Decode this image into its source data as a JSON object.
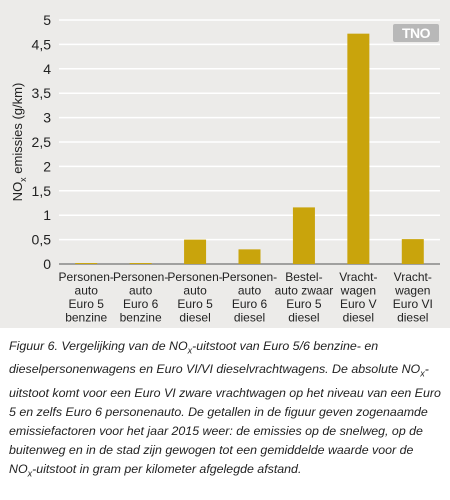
{
  "chart_data": {
    "type": "bar",
    "categories": [
      [
        "Personen-",
        "auto",
        "Euro 5",
        "benzine"
      ],
      [
        "Personen-",
        "auto",
        "Euro 6",
        "benzine"
      ],
      [
        "Personen-",
        "auto",
        "Euro 5",
        "diesel"
      ],
      [
        "Personen-",
        "auto",
        "Euro 6",
        "diesel"
      ],
      [
        "Bestel-",
        "auto zwaar",
        "Euro 5",
        "diesel"
      ],
      [
        "Vracht-",
        "wagen",
        "Euro V",
        "diesel"
      ],
      [
        "Vracht-",
        "wagen",
        "Euro VI",
        "diesel"
      ]
    ],
    "values": [
      0.02,
      0.02,
      0.5,
      0.3,
      1.16,
      4.72,
      0.51
    ],
    "ylabel_main": "NO",
    "ylabel_sub": "x",
    "ylabel_rest": " emissies (g/km)",
    "ylim": [
      0,
      5
    ],
    "yticks": [
      "0",
      "0,5",
      "1",
      "1,5",
      "2",
      "2,5",
      "3",
      "3,5",
      "4",
      "4,5",
      "5"
    ],
    "grid": true,
    "bar_color": "#c9a40c"
  },
  "logo_text": "TNO",
  "caption": {
    "label": "Figuur 6.",
    "parts": [
      "  Vergelijking van de NO",
      "x",
      "-uitstoot van Euro 5/6 benzine- en dieselpersonenwagens en Euro VI/VI dieselvrachtwagens. De absolute NO",
      "x",
      "-uitstoot komt voor een Euro VI zware vrachtwagen op het niveau van een Euro 5 en zelfs Euro 6 personenauto. De getallen in de figuur geven zogenaamde emissiefactoren voor het jaar 2015 weer: de emissies op de snelweg, op de buitenweg en in de stad zijn gewogen tot een gemiddelde waarde voor de NO",
      "x",
      "-uitstoot in gram per kilometer afgelegde afstand."
    ]
  }
}
